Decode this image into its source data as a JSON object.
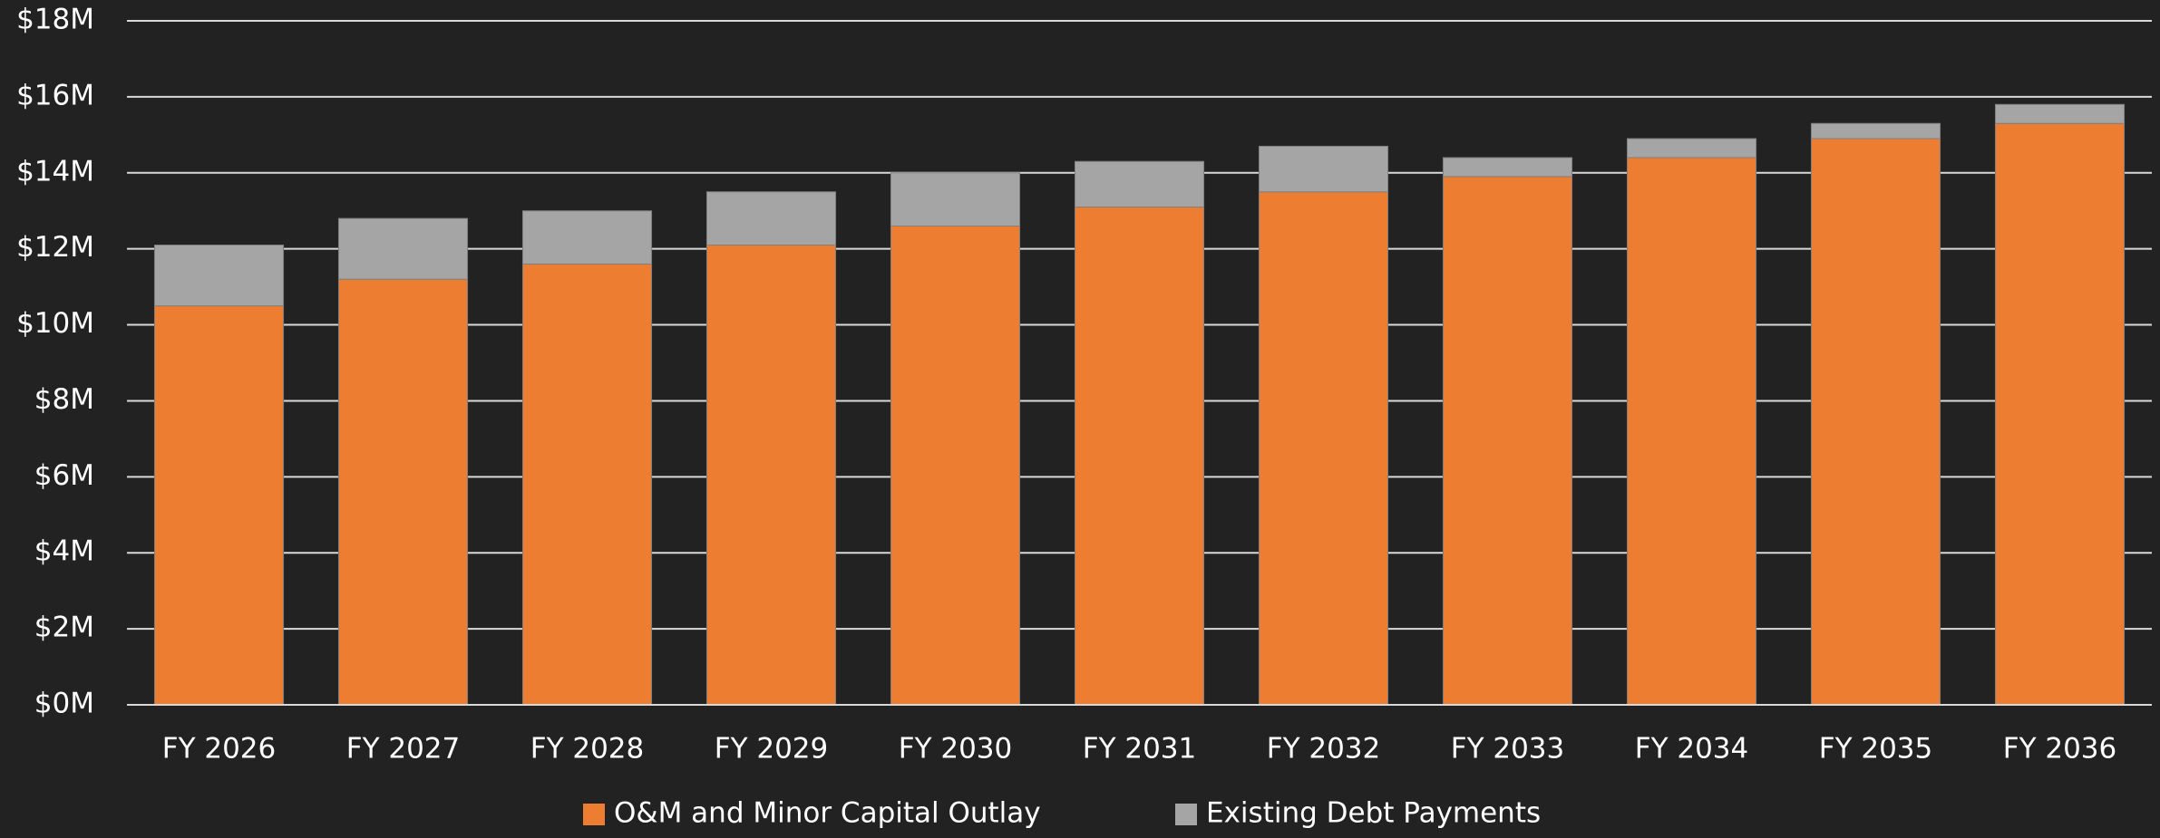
{
  "chart_data": {
    "type": "stacked_bar",
    "categories": [
      "FY 2026",
      "FY 2027",
      "FY 2028",
      "FY 2029",
      "FY 2030",
      "FY 2031",
      "FY 2032",
      "FY 2033",
      "FY 2034",
      "FY 2035",
      "FY 2036"
    ],
    "series": [
      {
        "name": "O&M and Minor Capital Outlay",
        "color": "#ed7d31",
        "values": [
          10.5,
          11.2,
          11.6,
          12.1,
          12.6,
          13.1,
          13.5,
          13.9,
          14.4,
          14.9,
          15.3
        ]
      },
      {
        "name": "Existing Debt Payments",
        "color": "#a5a5a5",
        "values": [
          1.6,
          1.6,
          1.4,
          1.4,
          1.4,
          1.2,
          1.2,
          0.5,
          0.5,
          0.4,
          0.5
        ]
      }
    ],
    "ylim": [
      0,
      18
    ],
    "yticks": [
      {
        "value": 0,
        "label": "$0M"
      },
      {
        "value": 2,
        "label": "$2M"
      },
      {
        "value": 4,
        "label": "$4M"
      },
      {
        "value": 6,
        "label": "$6M"
      },
      {
        "value": 8,
        "label": "$8M"
      },
      {
        "value": 10,
        "label": "$10M"
      },
      {
        "value": 12,
        "label": "$12M"
      },
      {
        "value": 14,
        "label": "$14M"
      },
      {
        "value": 16,
        "label": "$16M"
      },
      {
        "value": 18,
        "label": "$18M"
      }
    ],
    "grid": true,
    "legend": "bottom"
  }
}
